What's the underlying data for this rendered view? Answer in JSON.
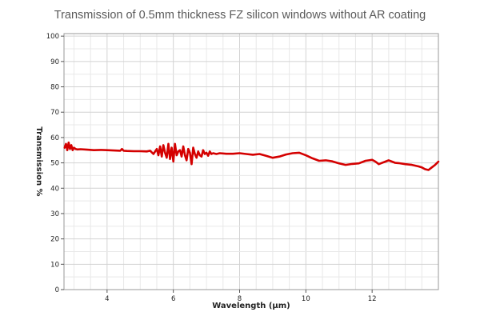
{
  "chart_data": {
    "type": "line",
    "title": "Transmission of 0.5mm thickness FZ silicon windows without AR coating",
    "xlabel": "Wavelength (μm)",
    "ylabel": "Transmission %",
    "xlim": [
      2.7,
      14.0
    ],
    "ylim": [
      0,
      101
    ],
    "x_ticks": [
      4,
      6,
      8,
      10,
      12
    ],
    "x_tick_labels": [
      "4",
      "6",
      "8",
      "10",
      "12"
    ],
    "y_ticks": [
      0,
      10,
      20,
      30,
      40,
      50,
      60,
      70,
      80,
      90,
      100
    ],
    "y_tick_labels": [
      "0",
      "10",
      "20",
      "30",
      "40",
      "50",
      "60",
      "70",
      "80",
      "90",
      "100"
    ],
    "grid": true,
    "series": [
      {
        "color": "#d40000",
        "x": [
          2.72,
          2.76,
          2.8,
          2.84,
          2.88,
          2.92,
          2.96,
          3.0,
          3.05,
          3.1,
          3.2,
          3.4,
          3.6,
          3.8,
          4.0,
          4.2,
          4.4,
          4.45,
          4.5,
          4.6,
          4.8,
          5.0,
          5.2,
          5.3,
          5.4,
          5.5,
          5.55,
          5.6,
          5.65,
          5.7,
          5.75,
          5.8,
          5.85,
          5.9,
          5.95,
          6.0,
          6.05,
          6.1,
          6.15,
          6.2,
          6.25,
          6.3,
          6.35,
          6.4,
          6.45,
          6.5,
          6.55,
          6.6,
          6.65,
          6.7,
          6.75,
          6.8,
          6.85,
          6.9,
          6.95,
          7.0,
          7.05,
          7.1,
          7.15,
          7.2,
          7.3,
          7.4,
          7.6,
          7.8,
          8.0,
          8.2,
          8.4,
          8.6,
          8.8,
          9.0,
          9.2,
          9.4,
          9.6,
          9.8,
          10.0,
          10.2,
          10.4,
          10.6,
          10.8,
          11.0,
          11.2,
          11.4,
          11.6,
          11.8,
          12.0,
          12.1,
          12.2,
          12.3,
          12.4,
          12.5,
          12.6,
          12.7,
          12.8,
          13.0,
          13.2,
          13.4,
          13.5,
          13.6,
          13.7,
          13.8,
          13.9,
          14.0
        ],
        "y": [
          56,
          57.5,
          55,
          58,
          55.5,
          57,
          55,
          56,
          55.5,
          55.3,
          55.4,
          55.2,
          55.0,
          55.1,
          55.0,
          54.9,
          54.8,
          55.5,
          54.8,
          54.7,
          54.6,
          54.6,
          54.5,
          54.8,
          53.5,
          55.5,
          53.0,
          56.5,
          52.5,
          57.0,
          54.0,
          52.0,
          57.5,
          51.5,
          56.0,
          50.5,
          57.5,
          53.0,
          54.5,
          55.0,
          52.5,
          56.5,
          53.0,
          51.0,
          55.5,
          54.0,
          49.5,
          56.0,
          53.5,
          52.0,
          54.5,
          53.0,
          52.5,
          55.0,
          53.5,
          54.0,
          52.8,
          54.5,
          53.5,
          53.8,
          53.5,
          53.8,
          53.6,
          53.6,
          53.8,
          53.5,
          53.2,
          53.5,
          52.8,
          52.0,
          52.5,
          53.3,
          53.8,
          54.0,
          53.0,
          51.8,
          50.8,
          51.0,
          50.6,
          49.8,
          49.2,
          49.6,
          49.8,
          50.8,
          51.2,
          50.5,
          49.5,
          50.0,
          50.5,
          51.0,
          50.5,
          50.0,
          49.9,
          49.5,
          49.2,
          48.6,
          48.2,
          47.5,
          47.2,
          48.2,
          49.2,
          50.5
        ]
      }
    ]
  }
}
